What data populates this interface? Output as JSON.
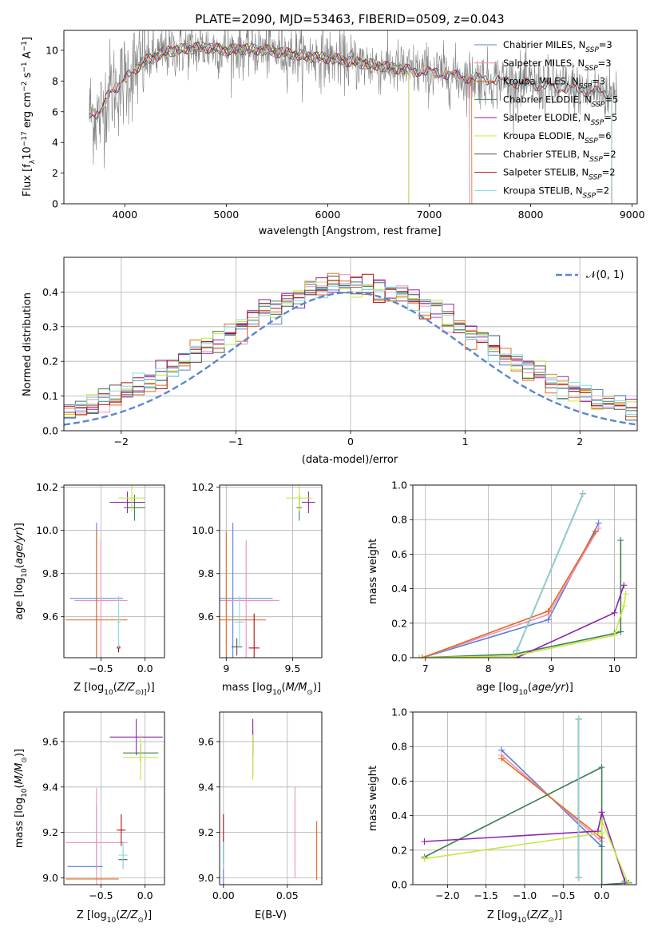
{
  "figure_title": "PLATE=2090, MJD=53463, FIBERID=0509, z=0.043",
  "colors": {
    "Chabrier MILES": "#5b7fd6",
    "Salpeter MILES": "#ee8fc0",
    "Kroupa MILES": "#e5691b",
    "Chabrier ELODIE": "#3f7f55",
    "Salpeter ELODIE": "#8e24aa",
    "Kroupa ELODIE": "#c6e83c",
    "Chabrier STELIB": "#555555",
    "Salpeter STELIB": "#b01010",
    "Kroupa STELIB": "#86dbe0",
    "data": "#808080",
    "normal": "#5b86d0"
  },
  "chart_data": [
    {
      "id": "spectrum",
      "type": "line",
      "xlabel": "wavelength [Angstrom, rest frame]",
      "ylabel_main": "Flux [f",
      "ylabel_sub": "λ",
      "ylabel_rest": "10",
      "ylabel_exp1": "−17",
      "ylabel_mid": " erg cm",
      "ylabel_exp2": "−2",
      "ylabel_mid2": " s",
      "ylabel_exp3": "−1",
      "ylabel_mid3": " A",
      "ylabel_exp4": "−1",
      "ylabel_end": "]",
      "xlim": [
        3400,
        9050
      ],
      "ylim": [
        0,
        11.3
      ],
      "xticks": [
        4000,
        5000,
        6000,
        7000,
        8000,
        9000
      ],
      "yticks": [
        0,
        2,
        4,
        6,
        8,
        10
      ],
      "legend_position": "upper right",
      "legend": [
        {
          "name": "Chabrier MILES",
          "nssp": "3"
        },
        {
          "name": "Salpeter MILES",
          "nssp": "3"
        },
        {
          "name": "Kroupa MILES",
          "nssp": "3"
        },
        {
          "name": "Chabrier ELODIE",
          "nssp": "5"
        },
        {
          "name": "Salpeter ELODIE",
          "nssp": "5"
        },
        {
          "name": "Kroupa ELODIE",
          "nssp": "6"
        },
        {
          "name": "Chabrier STELIB",
          "nssp": "2"
        },
        {
          "name": "Salpeter STELIB",
          "nssp": "2"
        },
        {
          "name": "Kroupa STELIB",
          "nssp": "2"
        }
      ],
      "legend_suffix": "N",
      "legend_sub": "SSP",
      "data_range": [
        3650,
        8850
      ],
      "model_anchors": {
        "x": [
          3650,
          3750,
          3850,
          3950,
          4050,
          4200,
          4400,
          4600,
          4800,
          5000,
          5200,
          5400,
          5600,
          5800,
          6000,
          6200,
          6400,
          6600,
          6800,
          7000,
          7200,
          7400,
          7600,
          7800,
          8000,
          8200,
          8400,
          8600,
          8800
        ],
        "y": [
          6.0,
          5.6,
          7.5,
          7.6,
          8.5,
          9.3,
          9.9,
          10.1,
          10.2,
          10.0,
          10.1,
          10.0,
          9.8,
          9.6,
          9.5,
          9.3,
          9.1,
          8.9,
          8.7,
          8.6,
          8.4,
          8.2,
          8.1,
          7.9,
          7.8,
          7.6,
          7.5,
          7.3,
          7.2
        ]
      },
      "model_ranges": {
        "Chabrier MILES": [
          3650,
          7400
        ],
        "Salpeter MILES": [
          3650,
          7400
        ],
        "Kroupa MILES": [
          3650,
          7420
        ],
        "Chabrier ELODIE": [
          4100,
          6800
        ],
        "Salpeter ELODIE": [
          4100,
          6800
        ],
        "Kroupa ELODIE": [
          4100,
          6800
        ],
        "Chabrier STELIB": [
          3650,
          8800
        ],
        "Salpeter STELIB": [
          3650,
          8800
        ],
        "Kroupa STELIB": [
          3650,
          8800
        ]
      }
    },
    {
      "id": "residuals",
      "type": "histogram",
      "xlabel": "(data-model)/error",
      "ylabel": "Normed distribution",
      "xlim": [
        -2.5,
        2.5
      ],
      "ylim": [
        0,
        0.5
      ],
      "xticks": [
        -2,
        -1,
        0,
        1,
        2
      ],
      "yticks": [
        0.0,
        0.1,
        0.2,
        0.3,
        0.4
      ],
      "bin_width": 0.1,
      "normal_curve": "N(0,1)",
      "legend": "𝒩(0, 1)",
      "legend_position": "upper right"
    },
    {
      "id": "age_vs_Z",
      "type": "errorbar",
      "xlabel_pre": "Z [log",
      "xlabel_sub": "10",
      "xlabel_post": "(Z/Z",
      "xlabel_end": "⊙)]",
      "ylabel_pre": "age  [log",
      "ylabel_sub": "10",
      "ylabel_post": "(age/yr)]",
      "xlim": [
        -0.92,
        0.22
      ],
      "ylim": [
        9.41,
        10.21
      ],
      "xticks": [
        -0.5,
        0.0
      ],
      "xticklabels": [
        "−0.5",
        "0.0"
      ],
      "yticks": [
        9.6,
        9.8,
        10.0,
        10.2
      ],
      "points": [
        {
          "model": "Chabrier MILES",
          "x": -0.55,
          "xerr": 0.3,
          "y": 9.685,
          "yerr": 0.35
        },
        {
          "model": "Salpeter MILES",
          "x": -0.5,
          "xerr": 0.3,
          "y": 9.675,
          "yerr": 0.28
        },
        {
          "model": "Kroupa MILES",
          "x": -0.55,
          "xerr": 0.35,
          "y": 9.585,
          "yerr": 0.41
        },
        {
          "model": "Chabrier ELODIE",
          "x": -0.12,
          "xerr": 0.12,
          "y": 10.105,
          "yerr": 0.06
        },
        {
          "model": "Salpeter ELODIE",
          "x": -0.2,
          "xerr": 0.2,
          "y": 10.13,
          "yerr": 0.05
        },
        {
          "model": "Kroupa ELODIE",
          "x": -0.15,
          "xerr": 0.15,
          "y": 10.15,
          "yerr": 0.06
        },
        {
          "model": "Chabrier STELIB",
          "x": -0.3,
          "xerr": 0.02,
          "y": 9.46,
          "yerr": 0.02
        },
        {
          "model": "Salpeter STELIB",
          "x": -0.3,
          "xerr": 0.02,
          "y": 9.455,
          "yerr": 0.02
        },
        {
          "model": "Kroupa STELIB",
          "x": -0.3,
          "xerr": 0.02,
          "y": 9.575,
          "yerr": 0.12
        }
      ]
    },
    {
      "id": "age_vs_mass",
      "type": "errorbar",
      "xlabel_pre": "mass [log",
      "xlabel_sub": "10",
      "xlabel_post": "(M/M",
      "xlabel_end": "⊙)]",
      "xlim": [
        8.95,
        9.72
      ],
      "ylim": [
        9.41,
        10.21
      ],
      "xticks": [
        9.0,
        9.5
      ],
      "yticks": [
        9.6,
        9.8,
        10.0,
        10.2
      ],
      "points": [
        {
          "model": "Chabrier MILES",
          "x": 9.05,
          "xerr": 0.3,
          "y": 9.685,
          "yerr": 0.35
        },
        {
          "model": "Salpeter MILES",
          "x": 9.15,
          "xerr": 0.25,
          "y": 9.675,
          "yerr": 0.28
        },
        {
          "model": "Kroupa MILES",
          "x": 9.0,
          "xerr": 0.3,
          "y": 9.585,
          "yerr": 0.41
        },
        {
          "model": "Chabrier ELODIE",
          "x": 9.55,
          "xerr": 0.02,
          "y": 10.105,
          "yerr": 0.06
        },
        {
          "model": "Salpeter ELODIE",
          "x": 9.62,
          "xerr": 0.05,
          "y": 10.13,
          "yerr": 0.05
        },
        {
          "model": "Kroupa ELODIE",
          "x": 9.55,
          "xerr": 0.1,
          "y": 10.15,
          "yerr": 0.06
        },
        {
          "model": "Chabrier STELIB",
          "x": 9.08,
          "xerr": 0.04,
          "y": 9.46,
          "yerr": 0.04
        },
        {
          "model": "Salpeter STELIB",
          "x": 9.21,
          "xerr": 0.04,
          "y": 9.455,
          "yerr": 0.16
        },
        {
          "model": "Kroupa STELIB",
          "x": 9.1,
          "xerr": 0.04,
          "y": 9.575,
          "yerr": 0.12
        }
      ]
    },
    {
      "id": "massweight_vs_age",
      "type": "line",
      "xlabel_pre": "age  [log",
      "xlabel_sub": "10",
      "xlabel_post": "(age/yr)]",
      "ylabel": "mass weight",
      "xlim": [
        6.8,
        10.35
      ],
      "ylim": [
        0,
        1.0
      ],
      "xticks": [
        7,
        8,
        9,
        10
      ],
      "yticks": [
        0.0,
        0.2,
        0.4,
        0.6,
        0.8,
        1.0
      ],
      "series": [
        {
          "model": "Chabrier MILES",
          "x": [
            6.95,
            8.95,
            9.75
          ],
          "y": [
            0.0,
            0.22,
            0.78
          ]
        },
        {
          "model": "Salpeter MILES",
          "x": [
            6.95,
            8.95,
            9.75
          ],
          "y": [
            0.0,
            0.25,
            0.75
          ]
        },
        {
          "model": "Kroupa MILES",
          "x": [
            6.95,
            8.95,
            9.7
          ],
          "y": [
            0.0,
            0.27,
            0.73
          ]
        },
        {
          "model": "Chabrier ELODIE",
          "x": [
            6.9,
            8.4,
            10.0,
            10.1,
            10.1
          ],
          "y": [
            0.0,
            0.02,
            0.14,
            0.15,
            0.68
          ]
        },
        {
          "model": "Salpeter ELODIE",
          "x": [
            8.45,
            10.0,
            10.15
          ],
          "y": [
            0.0,
            0.26,
            0.42
          ]
        },
        {
          "model": "Kroupa ELODIE",
          "x": [
            6.9,
            8.4,
            10.0,
            10.15,
            10.18
          ],
          "y": [
            0.0,
            0.01,
            0.13,
            0.3,
            0.37
          ]
        },
        {
          "model": "Chabrier STELIB",
          "x": [
            8.45,
            9.5
          ],
          "y": [
            0.04,
            0.95
          ]
        },
        {
          "model": "Salpeter STELIB",
          "x": [
            8.45,
            9.5
          ],
          "y": [
            0.04,
            0.95
          ]
        },
        {
          "model": "Kroupa STELIB",
          "x": [
            8.45,
            9.5
          ],
          "y": [
            0.04,
            0.95
          ]
        }
      ]
    },
    {
      "id": "mass_vs_Z",
      "type": "errorbar",
      "xlabel_pre": "Z [log",
      "xlabel_sub": "10",
      "xlabel_post": "(Z/Z",
      "xlabel_end": "⊙)]",
      "ylabel_pre": "mass [log",
      "ylabel_sub": "10",
      "ylabel_post": "(M/M",
      "ylabel_end": "⊙)]",
      "xlim": [
        -0.92,
        0.22
      ],
      "ylim": [
        8.97,
        9.73
      ],
      "xticks": [
        -0.5,
        0.0
      ],
      "xticklabels": [
        "−0.5",
        "0.0"
      ],
      "yticks": [
        9.0,
        9.2,
        9.4,
        9.6
      ],
      "points": [
        {
          "model": "Chabrier MILES",
          "x": -0.68,
          "xerr": 0.2,
          "y": 9.05,
          "yerr": 0.0
        },
        {
          "model": "Chabrier MILES",
          "x": -0.55,
          "xerr": 0.0,
          "y": 9.18,
          "yerr": 0.14
        },
        {
          "model": "Salpeter MILES",
          "x": -0.55,
          "xerr": 0.35,
          "y": 9.155,
          "yerr": 0.24
        },
        {
          "model": "Kroupa MILES",
          "x": -0.6,
          "xerr": 0.3,
          "y": 8.995,
          "yerr": 0.0
        },
        {
          "model": "Chabrier ELODIE",
          "x": -0.05,
          "xerr": 0.2,
          "y": 9.55,
          "yerr": 0.04
        },
        {
          "model": "Salpeter ELODIE",
          "x": -0.1,
          "xerr": 0.3,
          "y": 9.62,
          "yerr": 0.08
        },
        {
          "model": "Kroupa ELODIE",
          "x": -0.05,
          "xerr": 0.2,
          "y": 9.53,
          "yerr": 0.1
        },
        {
          "model": "Chabrier STELIB",
          "x": -0.25,
          "xerr": 0.05,
          "y": 9.08,
          "yerr": 0.04
        },
        {
          "model": "Salpeter STELIB",
          "x": -0.27,
          "xerr": 0.05,
          "y": 9.21,
          "yerr": 0.07
        },
        {
          "model": "Kroupa STELIB",
          "x": -0.25,
          "xerr": 0.05,
          "y": 9.1,
          "yerr": 0.06
        }
      ]
    },
    {
      "id": "mass_vs_ebv",
      "type": "errorbar",
      "xlabel": "E(B-V)",
      "xlim": [
        -0.003,
        0.077
      ],
      "ylim": [
        8.97,
        9.73
      ],
      "xticks": [
        0.0,
        0.05
      ],
      "xticklabels": [
        "0.00",
        "0.05"
      ],
      "yticks": [
        9.0,
        9.2,
        9.4,
        9.6
      ],
      "points": [
        {
          "model": "Chabrier MILES",
          "x": 0.0,
          "y": 9.07,
          "yerr": 0.1
        },
        {
          "model": "Salpeter MILES",
          "x": 0.056,
          "y": 9.2,
          "yerr": 0.2
        },
        {
          "model": "Kroupa MILES",
          "x": 0.073,
          "y": 9.12,
          "yerr": 0.13
        },
        {
          "model": "Chabrier ELODIE",
          "x": 0.023,
          "y": 9.55,
          "yerr": 0.1
        },
        {
          "model": "Salpeter ELODIE",
          "x": 0.023,
          "y": 9.62,
          "yerr": 0.08
        },
        {
          "model": "Kroupa ELODIE",
          "x": 0.023,
          "y": 9.53,
          "yerr": 0.1
        },
        {
          "model": "Chabrier STELIB",
          "x": 0.0,
          "y": 9.1,
          "yerr": 0.04
        },
        {
          "model": "Salpeter STELIB",
          "x": 0.0,
          "y": 9.21,
          "yerr": 0.07
        },
        {
          "model": "Kroupa STELIB",
          "x": 0.0,
          "y": 9.1,
          "yerr": 0.06
        }
      ]
    },
    {
      "id": "massweight_vs_Z",
      "type": "line",
      "xlabel_pre": "Z [log",
      "xlabel_sub": "10",
      "xlabel_post": "(Z/Z",
      "xlabel_end": "⊙)]",
      "ylabel": "mass weight",
      "xlim": [
        -2.45,
        0.45
      ],
      "ylim": [
        0,
        1.0
      ],
      "xticks": [
        -2.0,
        -1.5,
        -1.0,
        -0.5,
        0.0
      ],
      "xticklabels": [
        "−2.0",
        "−1.5",
        "−1.0",
        "−0.5",
        "0.0"
      ],
      "yticks": [
        0.0,
        0.2,
        0.4,
        0.6,
        0.8,
        1.0
      ],
      "series": [
        {
          "model": "Chabrier MILES",
          "x": [
            -1.3,
            0.0
          ],
          "y": [
            0.78,
            0.22
          ]
        },
        {
          "model": "Salpeter MILES",
          "x": [
            -1.3,
            0.0
          ],
          "y": [
            0.75,
            0.25
          ]
        },
        {
          "model": "Kroupa MILES",
          "x": [
            -1.3,
            0.0
          ],
          "y": [
            0.73,
            0.27
          ]
        },
        {
          "model": "Chabrier ELODIE",
          "x": [
            -2.3,
            0.0,
            0.0,
            0.35
          ],
          "y": [
            0.16,
            0.68,
            0.0,
            0.01
          ]
        },
        {
          "model": "Salpeter ELODIE",
          "x": [
            -2.3,
            -0.05,
            0.0,
            0.3
          ],
          "y": [
            0.25,
            0.31,
            0.42,
            0.02
          ]
        },
        {
          "model": "Kroupa ELODIE",
          "x": [
            -2.3,
            0.0,
            0.0,
            0.35
          ],
          "y": [
            0.15,
            0.3,
            0.37,
            0.0
          ]
        },
        {
          "model": "Chabrier STELIB",
          "x": [
            -0.3,
            -0.3
          ],
          "y": [
            0.04,
            0.96
          ]
        },
        {
          "model": "Salpeter STELIB",
          "x": [
            -0.3,
            -0.3
          ],
          "y": [
            0.04,
            0.96
          ]
        },
        {
          "model": "Kroupa STELIB",
          "x": [
            -0.3,
            -0.3
          ],
          "y": [
            0.04,
            0.96
          ]
        }
      ]
    }
  ]
}
